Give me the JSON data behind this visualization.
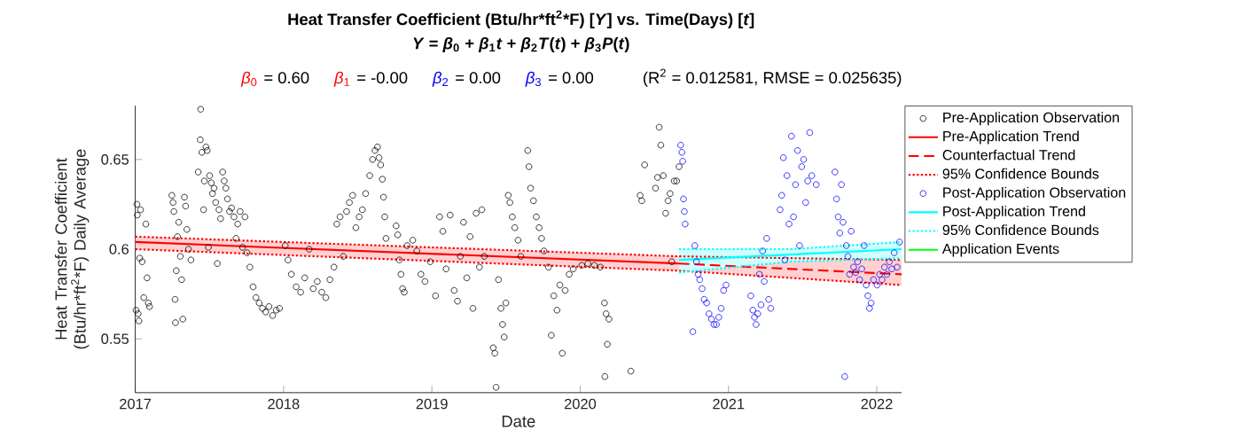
{
  "chart_data": {
    "type": "scatter",
    "title": "Heat Transfer Coefficient (Btu/hr*ft$^{2}$*F) [*Y*] vs. Time(Days) [*t*]",
    "subtitle": "*Y* = *β*$_{0}$ + *β*$_{1}$*t* + *β*$_{2}$*T*(*t*) + *β*$_{3}$*P*(*t*)",
    "annotations": [
      "*β*$_{0}$",
      "= 0.60",
      "*β*$_{1}$",
      "= -0.00",
      "*β*$_{2}$",
      "= 0.00",
      "*β*$_{3}$",
      "= 0.00",
      "(R$^{2}$ = 0.012581, RMSE = 0.025635)"
    ],
    "xlabel": "Date",
    "ylabel": "Heat Transfer Coefficient (Btu/hr*ft$^{2}$*F) Daily Average",
    "xlim": [
      "2017-01-01",
      "2022-03-03"
    ],
    "xticks": [
      {
        "value": "2017-01-01",
        "label": "2017"
      },
      {
        "value": "2018-01-01",
        "label": "2018"
      },
      {
        "value": "2019-01-01",
        "label": "2019"
      },
      {
        "value": "2020-01-01",
        "label": "2020"
      },
      {
        "value": "2021-01-01",
        "label": "2021"
      },
      {
        "value": "2022-01-01",
        "label": "2022"
      }
    ],
    "ylim": [
      0.52,
      0.68
    ],
    "yticks": [
      0.55,
      0.6,
      0.65
    ],
    "legend": "right",
    "series": [
      {
        "name": "Pre-Application Observation",
        "marker": "circle",
        "color": "#000000",
        "x": [
          "2017-01-03",
          "2017-01-05",
          "2017-01-06",
          "2017-01-08",
          "2017-01-10",
          "2017-01-12",
          "2017-01-14",
          "2017-01-18",
          "2017-01-22",
          "2017-01-27",
          "2017-01-30",
          "2017-02-02",
          "2017-02-05",
          "2017-04-01",
          "2017-04-04",
          "2017-04-06",
          "2017-04-09",
          "2017-04-10",
          "2017-04-12",
          "2017-04-15",
          "2017-04-18",
          "2017-04-22",
          "2017-04-25",
          "2017-04-28",
          "2017-05-02",
          "2017-05-05",
          "2017-05-08",
          "2017-05-12",
          "2017-05-18",
          "2017-06-05",
          "2017-06-10",
          "2017-06-11",
          "2017-06-14",
          "2017-06-18",
          "2017-06-20",
          "2017-06-24",
          "2017-06-27",
          "2017-06-30",
          "2017-07-03",
          "2017-07-07",
          "2017-07-10",
          "2017-07-14",
          "2017-07-18",
          "2017-07-22",
          "2017-07-26",
          "2017-07-30",
          "2017-08-04",
          "2017-08-08",
          "2017-08-12",
          "2017-08-16",
          "2017-08-21",
          "2017-08-26",
          "2017-09-01",
          "2017-09-06",
          "2017-09-10",
          "2017-09-16",
          "2017-09-22",
          "2017-09-28",
          "2017-10-03",
          "2017-10-10",
          "2017-10-18",
          "2017-10-25",
          "2017-11-02",
          "2017-11-10",
          "2017-11-18",
          "2017-11-26",
          "2017-12-05",
          "2017-12-14",
          "2017-12-22",
          "2018-01-05",
          "2018-01-12",
          "2018-01-20",
          "2018-02-01",
          "2018-02-12",
          "2018-02-22",
          "2018-03-05",
          "2018-03-15",
          "2018-03-25",
          "2018-04-05",
          "2018-04-15",
          "2018-04-25",
          "2018-05-05",
          "2018-05-12",
          "2018-05-20",
          "2018-05-28",
          "2018-06-05",
          "2018-06-12",
          "2018-06-20",
          "2018-06-28",
          "2018-07-06",
          "2018-07-14",
          "2018-07-22",
          "2018-08-01",
          "2018-08-08",
          "2018-08-14",
          "2018-08-20",
          "2018-08-24",
          "2018-08-28",
          "2018-09-01",
          "2018-09-04",
          "2018-09-07",
          "2018-09-10",
          "2018-10-05",
          "2018-10-09",
          "2018-10-13",
          "2018-10-17",
          "2018-10-21",
          "2018-10-25",
          "2018-11-01",
          "2018-11-15",
          "2018-11-25",
          "2018-12-05",
          "2018-12-15",
          "2018-12-28",
          "2019-01-10",
          "2019-01-20",
          "2019-01-28",
          "2019-02-05",
          "2019-02-15",
          "2019-02-25",
          "2019-03-05",
          "2019-03-12",
          "2019-03-20",
          "2019-03-28",
          "2019-04-05",
          "2019-04-12",
          "2019-04-20",
          "2019-04-28",
          "2019-05-04",
          "2019-05-10",
          "2019-06-01",
          "2019-06-05",
          "2019-06-08",
          "2019-06-14",
          "2019-06-20",
          "2019-06-24",
          "2019-06-28",
          "2019-07-02",
          "2019-07-08",
          "2019-07-12",
          "2019-07-18",
          "2019-07-24",
          "2019-08-01",
          "2019-08-08",
          "2019-08-25",
          "2019-08-28",
          "2019-09-01",
          "2019-09-08",
          "2019-09-15",
          "2019-09-22",
          "2019-09-28",
          "2019-10-04",
          "2019-10-15",
          "2019-10-22",
          "2019-10-28",
          "2019-11-05",
          "2019-11-12",
          "2019-11-18",
          "2019-11-25",
          "2019-12-05",
          "2019-12-15",
          "2020-01-05",
          "2020-01-20",
          "2020-02-05",
          "2020-02-20",
          "2020-03-01",
          "2020-03-02",
          "2020-03-05",
          "2020-03-08",
          "2020-03-12",
          "2020-05-05",
          "2020-05-28",
          "2020-06-01",
          "2020-06-08",
          "2020-07-05",
          "2020-07-10",
          "2020-07-14",
          "2020-07-18",
          "2020-07-24",
          "2020-07-30",
          "2020-08-05",
          "2020-08-10",
          "2020-08-14",
          "2020-08-20",
          "2020-08-26",
          "2020-09-01"
        ],
        "values": [
          0.566,
          0.625,
          0.619,
          0.564,
          0.56,
          0.595,
          0.622,
          0.593,
          0.573,
          0.614,
          0.584,
          0.57,
          0.568,
          0.63,
          0.626,
          0.621,
          0.572,
          0.559,
          0.588,
          0.607,
          0.615,
          0.596,
          0.583,
          0.561,
          0.629,
          0.624,
          0.611,
          0.6,
          0.594,
          0.643,
          0.661,
          0.678,
          0.654,
          0.622,
          0.638,
          0.657,
          0.655,
          0.601,
          0.641,
          0.637,
          0.631,
          0.634,
          0.626,
          0.592,
          0.622,
          0.617,
          0.643,
          0.638,
          0.634,
          0.628,
          0.621,
          0.623,
          0.618,
          0.606,
          0.614,
          0.621,
          0.601,
          0.618,
          0.598,
          0.59,
          0.579,
          0.573,
          0.57,
          0.567,
          0.565,
          0.568,
          0.563,
          0.566,
          0.567,
          0.602,
          0.594,
          0.586,
          0.579,
          0.576,
          0.584,
          0.6,
          0.578,
          0.582,
          0.576,
          0.573,
          0.583,
          0.59,
          0.614,
          0.618,
          0.596,
          0.621,
          0.626,
          0.63,
          0.612,
          0.618,
          0.622,
          0.631,
          0.641,
          0.65,
          0.655,
          0.657,
          0.651,
          0.647,
          0.639,
          0.629,
          0.618,
          0.606,
          0.613,
          0.608,
          0.594,
          0.586,
          0.578,
          0.576,
          0.602,
          0.605,
          0.599,
          0.586,
          0.582,
          0.593,
          0.574,
          0.618,
          0.61,
          0.589,
          0.619,
          0.577,
          0.571,
          0.596,
          0.615,
          0.584,
          0.607,
          0.567,
          0.62,
          0.59,
          0.622,
          0.596,
          0.545,
          0.542,
          0.523,
          0.583,
          0.567,
          0.558,
          0.551,
          0.57,
          0.63,
          0.626,
          0.618,
          0.612,
          0.605,
          0.596,
          0.655,
          0.646,
          0.634,
          0.627,
          0.618,
          0.612,
          0.606,
          0.599,
          0.59,
          0.552,
          0.574,
          0.566,
          0.58,
          0.542,
          0.577,
          0.586,
          0.589,
          0.591,
          0.592,
          0.591,
          0.59,
          0.57,
          0.529,
          0.564,
          0.547,
          0.561,
          0.532,
          0.63,
          0.627,
          0.647,
          0.634,
          0.64,
          0.668,
          0.658,
          0.641,
          0.62,
          0.627,
          0.631,
          0.593,
          0.638,
          0.638,
          0.646
        ]
      },
      {
        "name": "Pre-Application Trend",
        "type": "line",
        "line_style": "solid",
        "color": "#ff0000",
        "x": [
          "2017-01-01",
          "2020-09-01",
          "2022-03-03"
        ],
        "values": [
          0.604,
          0.592,
          null
        ],
        "lower": [
          0.6,
          0.588,
          0.58
        ],
        "upper": [
          0.607,
          0.596,
          0.594
        ]
      },
      {
        "name": "Counterfactual Trend",
        "type": "line",
        "line_style": "dashed",
        "color": "#ff0000",
        "x": [
          "2020-09-01",
          "2022-03-03"
        ],
        "values": [
          0.592,
          0.586
        ]
      },
      {
        "name": "95% Confidence Bounds",
        "type": "line",
        "line_style": "dotted",
        "color": "#ff0000",
        "x": [
          "2017-01-01",
          "2020-09-01",
          "2022-03-03",
          null,
          "2017-01-01",
          "2020-09-01",
          "2022-03-03"
        ],
        "values": [
          0.607,
          0.596,
          0.594,
          null,
          0.6,
          0.588,
          0.58
        ]
      },
      {
        "name": "Post-Application Observation",
        "marker": "circle",
        "color": "#0000ff",
        "x": [
          "2020-09-05",
          "2020-09-08",
          "2020-09-10",
          "2020-09-12",
          "2020-09-14",
          "2020-09-16",
          "2020-10-05",
          "2020-10-10",
          "2020-10-14",
          "2020-10-18",
          "2020-10-22",
          "2020-10-28",
          "2020-11-02",
          "2020-11-08",
          "2020-11-14",
          "2020-11-20",
          "2020-11-26",
          "2020-12-02",
          "2020-12-08",
          "2020-12-14",
          "2020-12-20",
          "2020-12-26",
          "2021-02-25",
          "2021-03-02",
          "2021-03-06",
          "2021-03-10",
          "2021-03-14",
          "2021-03-18",
          "2021-03-22",
          "2021-03-26",
          "2021-03-30",
          "2021-04-05",
          "2021-04-10",
          "2021-04-15",
          "2021-05-08",
          "2021-05-12",
          "2021-05-16",
          "2021-05-20",
          "2021-05-25",
          "2021-05-30",
          "2021-06-05",
          "2021-06-10",
          "2021-06-15",
          "2021-06-20",
          "2021-06-25",
          "2021-06-30",
          "2021-07-05",
          "2021-07-10",
          "2021-07-15",
          "2021-07-20",
          "2021-07-25",
          "2021-08-05",
          "2021-09-20",
          "2021-09-24",
          "2021-09-28",
          "2021-10-02",
          "2021-10-06",
          "2021-10-10",
          "2021-10-14",
          "2021-10-18",
          "2021-10-22",
          "2021-10-26",
          "2021-10-30",
          "2021-11-05",
          "2021-11-10",
          "2021-11-15",
          "2021-11-20",
          "2021-11-25",
          "2021-12-01",
          "2021-12-06",
          "2021-12-10",
          "2021-12-14",
          "2021-12-18",
          "2021-12-24",
          "2022-01-02",
          "2022-01-08",
          "2022-01-14",
          "2022-01-20",
          "2022-01-26",
          "2022-02-01",
          "2022-02-07",
          "2022-02-13",
          "2022-02-20",
          "2022-02-26"
        ],
        "values": [
          0.658,
          0.654,
          0.649,
          0.628,
          0.621,
          0.614,
          0.554,
          0.602,
          0.593,
          0.586,
          0.583,
          0.578,
          0.572,
          0.57,
          0.564,
          0.561,
          0.558,
          0.558,
          0.562,
          0.567,
          0.577,
          0.58,
          0.574,
          0.566,
          0.562,
          0.558,
          0.564,
          0.586,
          0.569,
          0.599,
          0.582,
          0.606,
          0.572,
          0.567,
          0.622,
          0.63,
          0.651,
          0.594,
          0.641,
          0.614,
          0.663,
          0.618,
          0.636,
          0.655,
          0.602,
          0.646,
          0.65,
          0.626,
          0.638,
          0.665,
          0.641,
          0.636,
          0.643,
          0.628,
          0.618,
          0.609,
          0.636,
          0.615,
          0.529,
          0.602,
          0.596,
          0.586,
          0.61,
          0.59,
          0.587,
          0.593,
          0.583,
          0.589,
          0.602,
          0.58,
          0.574,
          0.567,
          0.57,
          0.583,
          0.58,
          0.586,
          0.583,
          0.59,
          0.586,
          0.593,
          0.589,
          0.598,
          0.59,
          0.604
        ]
      },
      {
        "name": "Post-Application Trend",
        "type": "line",
        "line_style": "solid",
        "color": "#00ffff",
        "x": [
          "2020-09-01",
          "2021-06-01",
          "2022-03-03"
        ],
        "values": [
          0.594,
          0.597,
          0.6
        ],
        "lower": [
          0.587,
          0.593,
          0.595
        ],
        "upper": [
          0.6,
          0.6,
          0.604
        ]
      },
      {
        "name": "95% Confidence Bounds",
        "type": "line",
        "line_style": "dotted",
        "color": "#00ffff",
        "x": [
          "2020-09-01",
          "2021-06-01",
          "2022-03-03",
          null,
          "2020-09-01",
          "2021-06-01",
          "2022-03-03"
        ],
        "values": [
          0.6,
          0.6,
          0.604,
          null,
          0.587,
          0.593,
          0.595
        ]
      },
      {
        "name": "Application Events",
        "type": "line",
        "line_style": "solid",
        "color": "#00ff00"
      }
    ]
  }
}
